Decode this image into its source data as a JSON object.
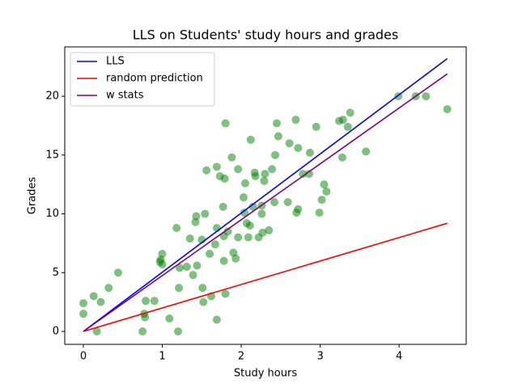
{
  "chart_data": {
    "type": "scatter",
    "title": "LLS on Students' study hours and grades",
    "xlabel": "Study hours",
    "ylabel": "Grades",
    "xlim": [
      -0.236,
      4.85
    ],
    "ylim": [
      -1.1,
      24.2
    ],
    "xticks": [
      0,
      1,
      2,
      3,
      4
    ],
    "yticks": [
      0,
      5,
      10,
      15,
      20
    ],
    "legend": "upper left",
    "points": {
      "color": "green",
      "opacity": 0.5,
      "x": [
        0,
        0,
        0.13,
        0.17,
        0.22,
        0.32,
        0.44,
        0.75,
        0.77,
        0.78,
        0.79,
        0.9,
        0.97,
        0.98,
        1.0,
        1.0,
        1.09,
        1.18,
        1.2,
        1.21,
        1.22,
        1.31,
        1.35,
        1.39,
        1.42,
        1.43,
        1.44,
        1.5,
        1.51,
        1.52,
        1.54,
        1.56,
        1.62,
        1.6,
        1.67,
        1.69,
        1.69,
        1.69,
        1.73,
        1.77,
        1.78,
        1.78,
        1.79,
        1.8,
        1.8,
        1.83,
        1.88,
        1.9,
        1.93,
        1.96,
        1.96,
        2.03,
        2.05,
        2.04,
        2.07,
        2.09,
        2.11,
        2.12,
        2.15,
        2.17,
        2.18,
        2.22,
        2.26,
        2.26,
        2.27,
        2.29,
        2.3,
        2.35,
        2.39,
        2.42,
        2.43,
        2.45,
        2.47,
        2.59,
        2.61,
        2.69,
        2.7,
        2.72,
        2.72,
        2.78,
        2.86,
        2.87,
        2.95,
        2.99,
        3.02,
        3.05,
        3.08,
        3.24,
        3.29,
        3.28,
        3.35,
        3.38,
        3.58,
        3.99,
        4.21,
        4.34,
        4.61
      ],
      "values": [
        2.4,
        1.5,
        3.0,
        0,
        2.5,
        3.7,
        5.0,
        0,
        1.5,
        1.2,
        2.6,
        2.6,
        5.9,
        6.1,
        5.7,
        6.6,
        1.1,
        8.8,
        0,
        3.7,
        5.4,
        5.5,
        7.9,
        4.8,
        9.3,
        9.8,
        5.6,
        7.8,
        3.7,
        2.5,
        10.0,
        13.7,
        3.0,
        6.6,
        7.4,
        1.0,
        8.8,
        14.0,
        13.2,
        10.6,
        6.0,
        8.1,
        13.0,
        17.7,
        3.2,
        8.5,
        14.8,
        6.7,
        6.2,
        13.8,
        8.0,
        11.4,
        12.6,
        10.1,
        9.2,
        8.0,
        9.0,
        16.3,
        10.6,
        13.5,
        13.2,
        8.0,
        10.0,
        10.7,
        8.4,
        12.8,
        13.4,
        8.6,
        13.8,
        11.0,
        15.0,
        17.7,
        16.6,
        11.0,
        16.0,
        18.0,
        10.1,
        15.6,
        10.4,
        13.4,
        13.4,
        15.2,
        17.4,
        10.1,
        11.2,
        12.5,
        11.9,
        17.9,
        18.0,
        14.8,
        17.4,
        18.6,
        15.3,
        20.0,
        20.0,
        20.0,
        18.9
      ]
    },
    "series": [
      {
        "name": "LLS",
        "color": "blue",
        "x": [
          0,
          4.61
        ],
        "values": [
          0,
          23.2
        ]
      },
      {
        "name": "random prediction",
        "color": "red",
        "x": [
          0,
          4.61
        ],
        "values": [
          0,
          9.2
        ]
      },
      {
        "name": "w stats",
        "color": "purple",
        "x": [
          0,
          4.61
        ],
        "values": [
          0,
          21.9
        ]
      }
    ]
  }
}
